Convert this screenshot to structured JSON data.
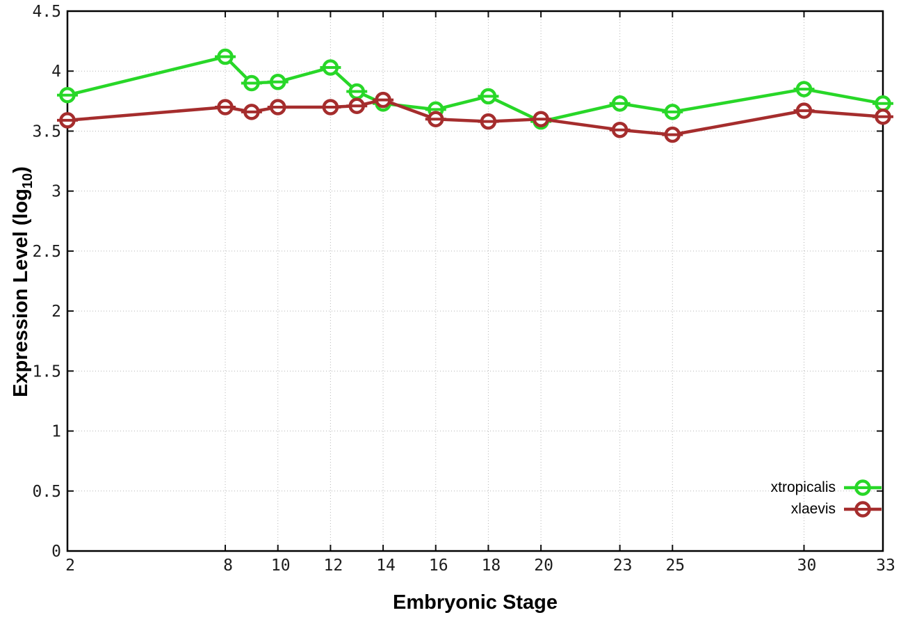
{
  "figure": {
    "background": "#ffffff",
    "border_color": "#000000",
    "grid_color": "#b4b4b4",
    "tick_color": "#111111",
    "tick_label_color": "#1c1c1c"
  },
  "chart_data": {
    "type": "line",
    "title": "",
    "xlabel": "Embryonic Stage",
    "ylabel": "Expression Level (log10)",
    "ylabel_parts": {
      "main": "Expression Level (log",
      "sub": "10",
      "end": ")"
    },
    "x": [
      2,
      8,
      9,
      10,
      12,
      13,
      14,
      16,
      18,
      20,
      23,
      25,
      30,
      33
    ],
    "xtick_labels": [
      "2",
      "8",
      "10",
      "12",
      "14",
      "16",
      "18",
      "20",
      "23",
      "25",
      "30",
      "33"
    ],
    "xtick_values": [
      2,
      8,
      10,
      12,
      14,
      16,
      18,
      20,
      23,
      25,
      30,
      33
    ],
    "ytick_labels": [
      "0",
      "0.5",
      "1",
      "1.5",
      "2",
      "2.5",
      "3",
      "3.5",
      "4",
      "4.5"
    ],
    "ytick_values": [
      0,
      0.5,
      1,
      1.5,
      2,
      2.5,
      3,
      3.5,
      4,
      4.5
    ],
    "xlim": [
      2,
      33
    ],
    "ylim": [
      0,
      4.5
    ],
    "grid": true,
    "marker": "open-circle-with-errorbar-cap",
    "legend_position": "inside-bottom-right",
    "series": [
      {
        "name": "xtropicalis",
        "color": "#28d728",
        "values": [
          3.8,
          4.12,
          3.9,
          3.91,
          4.03,
          3.83,
          3.73,
          3.68,
          3.79,
          3.58,
          3.73,
          3.66,
          3.85,
          3.73
        ]
      },
      {
        "name": "xlaevis",
        "color": "#a52d2d",
        "values": [
          3.59,
          3.7,
          3.66,
          3.7,
          3.7,
          3.71,
          3.76,
          3.6,
          3.58,
          3.6,
          3.51,
          3.47,
          3.67,
          3.62
        ]
      }
    ]
  },
  "legend": {
    "entries": [
      {
        "label": "xtropicalis",
        "color": "#28d728"
      },
      {
        "label": "xlaevis",
        "color": "#a52d2d"
      }
    ]
  }
}
